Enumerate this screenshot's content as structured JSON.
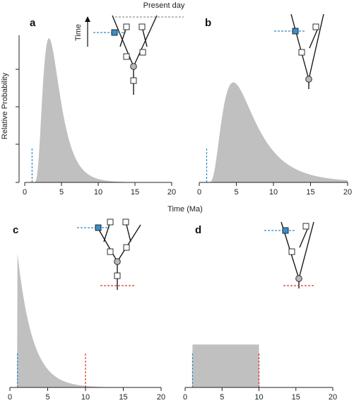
{
  "figure": {
    "header": "Present day",
    "time_arrow_label": "Time",
    "shared_ylabel": "Relative Probability",
    "shared_xlabel": "Time (Ma)"
  },
  "colors": {
    "fill": "#c0c0c0",
    "axis": "#222222",
    "blue": "#2e8cc7",
    "red": "#d9342b",
    "fossil_blue": "#3a8fc9",
    "node_grey": "#b8b8b8"
  },
  "chart_data": [
    {
      "panel": "a",
      "type": "area",
      "distribution": "lognormal",
      "offset": 1,
      "xlim": [
        0,
        20
      ],
      "xticks": [
        0,
        5,
        10,
        15,
        20
      ],
      "ylim": [
        0,
        1
      ],
      "peak_x": 3.3,
      "peak_y": 0.98,
      "min_bound": 1,
      "max_bound": null,
      "tree": {
        "fossil_node": "upper-left",
        "root_bound": false,
        "show_time_arrow": true
      }
    },
    {
      "panel": "b",
      "type": "area",
      "distribution": "lognormal",
      "offset": 1,
      "xlim": [
        0,
        20
      ],
      "xticks": [
        0,
        5,
        10,
        15,
        20
      ],
      "ylim": [
        0,
        1
      ],
      "peak_x": 4.6,
      "peak_y": 0.68,
      "min_bound": 1,
      "max_bound": null,
      "tree": {
        "fossil_node": "left",
        "root_bound": false,
        "show_time_arrow": false
      }
    },
    {
      "panel": "c",
      "type": "area",
      "distribution": "exponential",
      "offset": 1,
      "xlim": [
        0,
        20
      ],
      "xticks": [
        0,
        5,
        10,
        15,
        20
      ],
      "ylim": [
        0,
        1
      ],
      "peak_x": 1,
      "peak_y": 1.0,
      "min_bound": 1,
      "max_bound": 10,
      "tree": {
        "fossil_node": "upper-left",
        "root_bound": true,
        "show_time_arrow": false
      }
    },
    {
      "panel": "d",
      "type": "area",
      "distribution": "uniform",
      "offset": 0,
      "xlim": [
        0,
        20
      ],
      "xticks": [
        0,
        5,
        10,
        15,
        20
      ],
      "ylim": [
        0,
        1
      ],
      "uniform_range": [
        1,
        10
      ],
      "uniform_height": 0.32,
      "min_bound": 1,
      "max_bound": 10,
      "tree": {
        "fossil_node": "left",
        "root_bound": true,
        "show_time_arrow": false
      }
    }
  ]
}
